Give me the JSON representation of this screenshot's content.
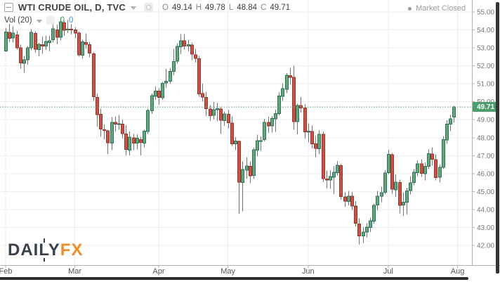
{
  "header": {
    "symbol_title": "WTI CRUDE OIL, D, TVC",
    "ohlc": {
      "o_label": "O",
      "o_value": "49.14",
      "h_label": "H",
      "h_value": "49.78",
      "l_label": "L",
      "l_value": "48.84",
      "c_label": "C",
      "c_value": "49.71"
    },
    "market_status": "Market Closed"
  },
  "indicator": {
    "label": "Vol (20)",
    "value_green": "0",
    "value_blue": "0"
  },
  "watermark": {
    "part_daily": "DAILY",
    "part_fx": "FX"
  },
  "colors": {
    "up_fill": "#66a37f",
    "up_border": "#2e7458",
    "down_fill": "#ca5146",
    "down_border": "#99362b",
    "wick": "#737375",
    "grid": "#ededee",
    "axis_border": "#b2b2b2",
    "axis_text": "#787878",
    "month_text": "#555555",
    "last_price_line": "#4d9e6d",
    "badge_bg": "#4d9e6d",
    "vol_value_green": "#2f9c5c",
    "vol_value_blue": "#4a90d2",
    "logo_dark": "#39424b",
    "logo_orange": "#ee8c28"
  },
  "chart_data": {
    "type": "candlestick",
    "title": "WTI CRUDE OIL, D, TVC",
    "xlabel": "",
    "ylabel": "",
    "grid": true,
    "legend": "none",
    "price_axis": {
      "min": 42,
      "max": 55,
      "step": 1,
      "labels": [
        "55.00",
        "54.00",
        "53.00",
        "52.00",
        "51.00",
        "50.00",
        "49.00",
        "48.00",
        "47.00",
        "46.00",
        "45.00",
        "44.00",
        "43.00",
        "42.00"
      ],
      "values": [
        55,
        54,
        53,
        52,
        51,
        50,
        49,
        48,
        47,
        46,
        45,
        44,
        43,
        42
      ]
    },
    "time_axis": {
      "months": [
        {
          "label": "Feb",
          "index": 0
        },
        {
          "label": "Mar",
          "index": 19
        },
        {
          "label": "Apr",
          "index": 42
        },
        {
          "label": "May",
          "index": 61
        },
        {
          "label": "Jun",
          "index": 83
        },
        {
          "label": "Jul",
          "index": 105
        },
        {
          "label": "Aug",
          "index": 124
        }
      ]
    },
    "last_price": 49.71,
    "last_price_label": "49.71",
    "candles_format": [
      "open",
      "high",
      "low",
      "close"
    ],
    "candles": [
      [
        52.83,
        54.09,
        52.78,
        53.88
      ],
      [
        53.87,
        54.34,
        53.32,
        53.54
      ],
      [
        53.55,
        54.2,
        53.3,
        53.83
      ],
      [
        53.72,
        53.95,
        52.91,
        53.01
      ],
      [
        53.0,
        53.17,
        51.85,
        52.17
      ],
      [
        52.15,
        52.55,
        51.62,
        52.34
      ],
      [
        52.33,
        53.1,
        52.06,
        53.0
      ],
      [
        53.0,
        54.04,
        52.86,
        53.86
      ],
      [
        53.8,
        53.92,
        52.73,
        52.93
      ],
      [
        52.9,
        53.28,
        52.54,
        53.2
      ],
      [
        53.18,
        53.62,
        52.68,
        53.11
      ],
      [
        53.1,
        53.69,
        52.88,
        53.36
      ],
      [
        53.3,
        53.65,
        52.8,
        53.4
      ],
      [
        53.45,
        54.38,
        53.3,
        54.06
      ],
      [
        54.0,
        54.29,
        53.2,
        53.59
      ],
      [
        53.6,
        54.68,
        53.41,
        54.45
      ],
      [
        54.4,
        54.49,
        53.66,
        53.99
      ],
      [
        54.0,
        54.55,
        53.82,
        54.05
      ],
      [
        54.04,
        54.34,
        53.75,
        54.01
      ],
      [
        54.0,
        54.14,
        53.54,
        53.83
      ],
      [
        53.82,
        53.9,
        52.52,
        52.61
      ],
      [
        52.6,
        53.45,
        52.4,
        53.33
      ],
      [
        53.3,
        53.8,
        52.95,
        53.2
      ],
      [
        53.18,
        53.33,
        52.48,
        52.7
      ],
      [
        52.68,
        52.75,
        50.05,
        50.28
      ],
      [
        50.25,
        50.45,
        48.59,
        49.28
      ],
      [
        49.3,
        49.61,
        48.05,
        48.49
      ],
      [
        48.45,
        48.73,
        47.9,
        48.4
      ],
      [
        48.38,
        48.45,
        47.09,
        47.72
      ],
      [
        47.7,
        49.14,
        47.3,
        48.86
      ],
      [
        48.85,
        49.18,
        48.35,
        48.75
      ],
      [
        48.76,
        49.27,
        48.45,
        48.78
      ],
      [
        48.75,
        49.0,
        47.95,
        48.22
      ],
      [
        48.2,
        48.7,
        47.02,
        47.34
      ],
      [
        47.3,
        48.35,
        47.01,
        48.04
      ],
      [
        48.0,
        48.2,
        47.3,
        47.7
      ],
      [
        47.7,
        48.18,
        47.35,
        47.97
      ],
      [
        47.9,
        48.05,
        47.01,
        47.73
      ],
      [
        47.7,
        48.45,
        47.47,
        48.37
      ],
      [
        48.35,
        49.62,
        48.21,
        49.51
      ],
      [
        49.5,
        50.45,
        49.32,
        50.35
      ],
      [
        50.3,
        50.85,
        50.1,
        50.6
      ],
      [
        50.6,
        50.76,
        49.84,
        50.24
      ],
      [
        50.22,
        51.1,
        50.1,
        51.03
      ],
      [
        51.05,
        51.84,
        50.78,
        51.15
      ],
      [
        51.14,
        51.88,
        51.01,
        51.7
      ],
      [
        51.7,
        52.94,
        51.48,
        52.24
      ],
      [
        52.25,
        53.25,
        52.12,
        53.08
      ],
      [
        53.06,
        53.77,
        52.66,
        53.4
      ],
      [
        53.4,
        53.76,
        52.9,
        53.11
      ],
      [
        53.1,
        53.45,
        52.8,
        53.18
      ],
      [
        53.15,
        53.3,
        52.32,
        52.65
      ],
      [
        52.62,
        52.95,
        52.18,
        52.41
      ],
      [
        52.4,
        52.56,
        50.28,
        50.44
      ],
      [
        50.45,
        51.0,
        50.0,
        50.27
      ],
      [
        50.25,
        50.56,
        49.2,
        49.62
      ],
      [
        49.6,
        49.82,
        48.93,
        49.23
      ],
      [
        49.25,
        49.98,
        49.01,
        49.56
      ],
      [
        49.55,
        49.94,
        48.92,
        49.62
      ],
      [
        49.6,
        49.7,
        48.2,
        48.97
      ],
      [
        48.95,
        49.45,
        48.65,
        49.33
      ],
      [
        49.3,
        49.55,
        48.52,
        48.84
      ],
      [
        48.82,
        49.18,
        47.54,
        47.66
      ],
      [
        47.65,
        48.03,
        47.3,
        47.82
      ],
      [
        47.8,
        47.85,
        43.76,
        45.52
      ],
      [
        45.5,
        46.68,
        43.9,
        46.22
      ],
      [
        46.2,
        46.91,
        45.72,
        46.43
      ],
      [
        46.4,
        46.67,
        45.47,
        45.88
      ],
      [
        45.9,
        47.44,
        45.7,
        47.33
      ],
      [
        47.3,
        48.16,
        46.95,
        47.83
      ],
      [
        47.82,
        48.07,
        47.27,
        47.84
      ],
      [
        47.9,
        49.04,
        47.8,
        48.85
      ],
      [
        48.85,
        49.17,
        48.26,
        48.66
      ],
      [
        48.65,
        49.2,
        48.28,
        49.07
      ],
      [
        49.05,
        49.56,
        48.33,
        49.35
      ],
      [
        49.35,
        50.53,
        49.24,
        50.33
      ],
      [
        50.3,
        51.02,
        50.05,
        50.73
      ],
      [
        50.7,
        51.6,
        50.48,
        51.47
      ],
      [
        51.45,
        51.88,
        50.95,
        51.36
      ],
      [
        51.35,
        52.0,
        48.45,
        48.9
      ],
      [
        48.9,
        49.9,
        48.18,
        49.8
      ],
      [
        49.8,
        50.28,
        49.4,
        49.66
      ],
      [
        49.65,
        49.88,
        47.96,
        48.32
      ],
      [
        48.3,
        48.8,
        47.73,
        48.36
      ],
      [
        48.35,
        48.67,
        47.41,
        47.66
      ],
      [
        47.65,
        48.1,
        46.91,
        47.4
      ],
      [
        47.38,
        48.43,
        47.1,
        48.19
      ],
      [
        48.18,
        48.35,
        45.52,
        45.72
      ],
      [
        45.7,
        46.18,
        45.2,
        45.64
      ],
      [
        45.65,
        46.2,
        45.15,
        45.83
      ],
      [
        45.8,
        46.42,
        44.86,
        46.08
      ],
      [
        46.06,
        46.7,
        45.9,
        46.46
      ],
      [
        46.45,
        46.55,
        44.55,
        44.73
      ],
      [
        44.7,
        44.96,
        44.13,
        44.46
      ],
      [
        44.45,
        45.03,
        44.24,
        44.74
      ],
      [
        44.75,
        44.98,
        43.98,
        44.2
      ],
      [
        44.2,
        44.46,
        43.06,
        43.23
      ],
      [
        43.2,
        43.5,
        42.05,
        42.53
      ],
      [
        42.53,
        43.04,
        42.13,
        42.74
      ],
      [
        42.75,
        43.26,
        42.46,
        43.01
      ],
      [
        43.0,
        43.55,
        42.75,
        43.38
      ],
      [
        43.35,
        44.33,
        43.21,
        44.24
      ],
      [
        44.25,
        45.04,
        43.95,
        44.74
      ],
      [
        44.75,
        45.27,
        44.4,
        44.93
      ],
      [
        44.95,
        46.2,
        44.86,
        46.04
      ],
      [
        46.05,
        47.32,
        45.95,
        47.07
      ],
      [
        47.05,
        47.15,
        44.88,
        45.13
      ],
      [
        45.1,
        45.95,
        44.7,
        45.52
      ],
      [
        45.5,
        45.66,
        43.78,
        44.23
      ],
      [
        44.25,
        44.96,
        43.65,
        44.4
      ],
      [
        44.4,
        45.22,
        43.72,
        45.04
      ],
      [
        45.05,
        45.85,
        44.84,
        45.49
      ],
      [
        45.5,
        46.24,
        45.35,
        46.08
      ],
      [
        46.06,
        46.74,
        45.86,
        46.54
      ],
      [
        46.55,
        46.8,
        45.81,
        46.02
      ],
      [
        46.0,
        46.63,
        45.62,
        46.4
      ],
      [
        46.4,
        47.35,
        46.25,
        47.12
      ],
      [
        47.1,
        47.47,
        46.45,
        46.79
      ],
      [
        46.78,
        47.08,
        45.63,
        45.77
      ],
      [
        45.8,
        46.5,
        45.5,
        46.34
      ],
      [
        46.35,
        48.08,
        46.24,
        47.89
      ],
      [
        47.88,
        48.97,
        47.65,
        48.75
      ],
      [
        48.75,
        49.28,
        48.37,
        49.04
      ],
      [
        49.14,
        49.78,
        48.84,
        49.71
      ]
    ]
  }
}
